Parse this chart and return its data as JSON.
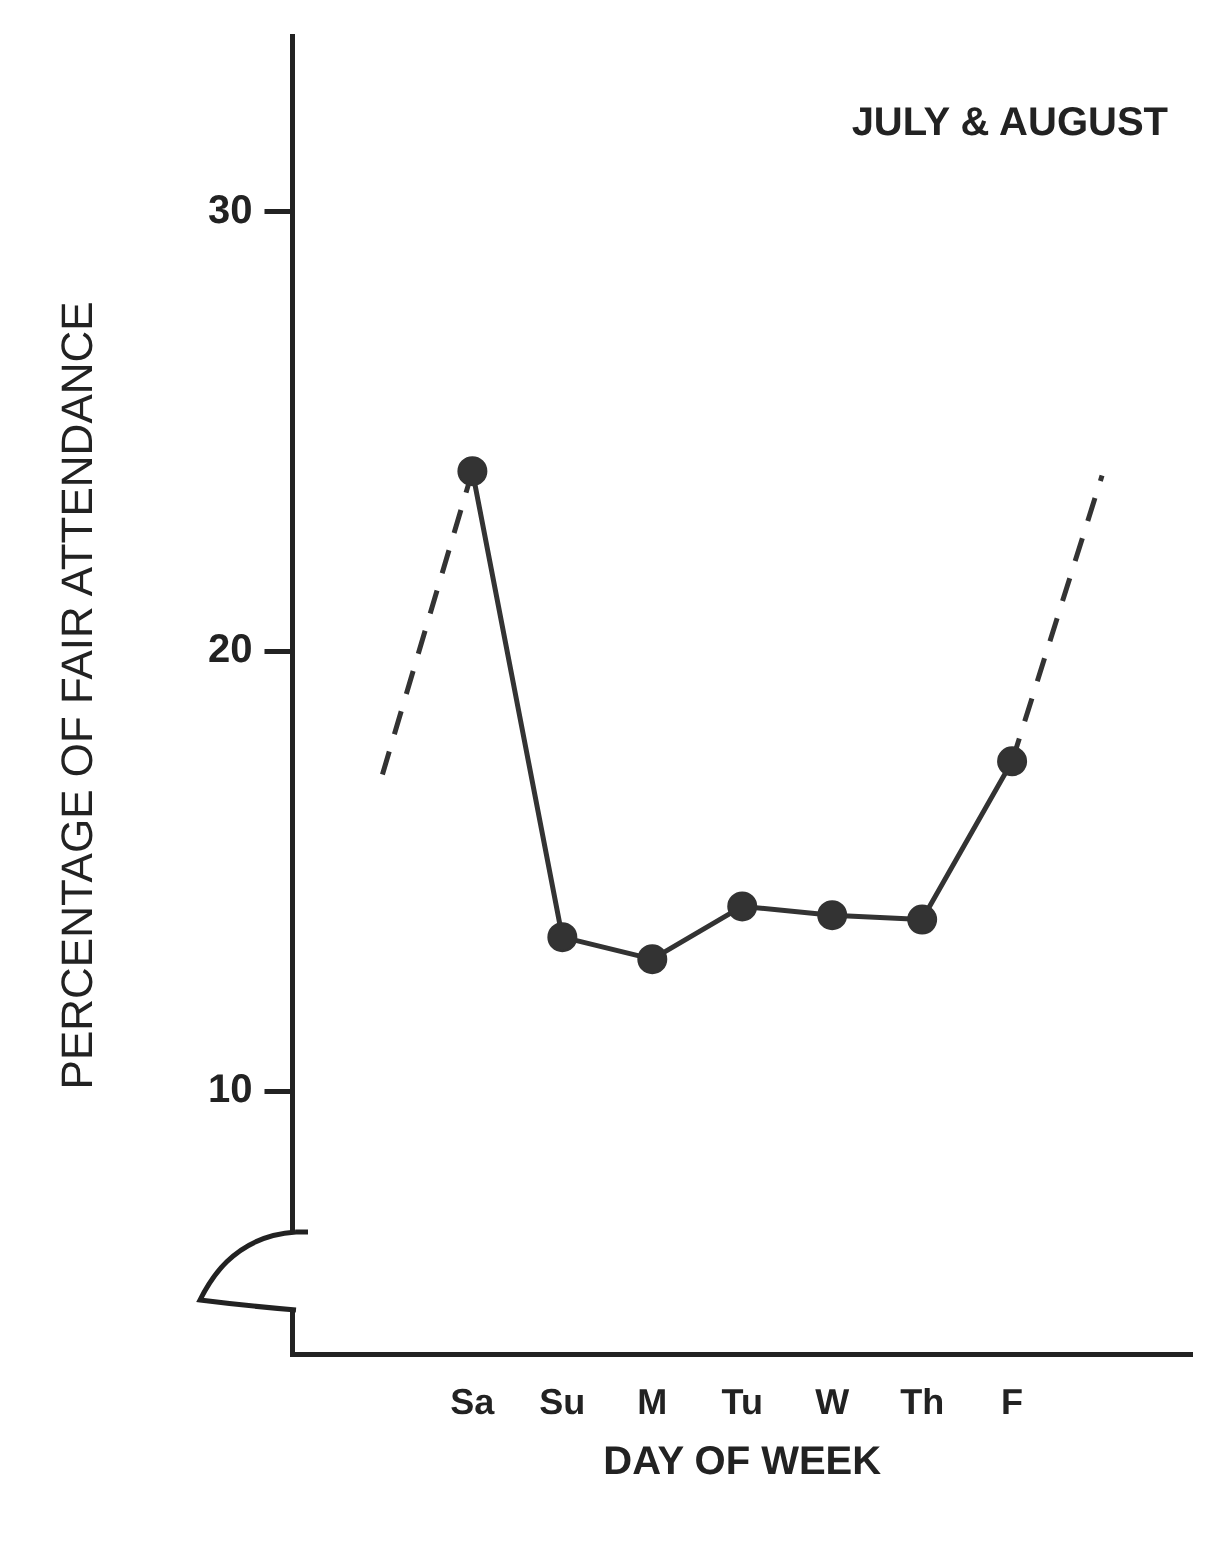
{
  "chart_data": {
    "type": "line",
    "title": "JULY & AUGUST",
    "xlabel": "DAY OF WEEK",
    "ylabel": "PERCENTAGE OF FAIR ATTENDANCE",
    "categories": [
      null,
      "Sa",
      "Su",
      "M",
      "Tu",
      "W",
      "Th",
      "F",
      null
    ],
    "series": [
      {
        "color": "#333333",
        "values": [
          null,
          24.1,
          13.5,
          13.0,
          14.2,
          14.0,
          13.9,
          17.5,
          null
        ],
        "marker": "circle",
        "line_style": "solid"
      },
      {
        "color": "#333333",
        "values": [
          17.2,
          24.1,
          null,
          null,
          null,
          null,
          null,
          17.5,
          24.0
        ],
        "line_style": "dashed"
      }
    ],
    "ylim": [
      4,
      34
    ],
    "yticks": [
      10,
      20,
      30
    ],
    "grid": false,
    "legend": false
  }
}
